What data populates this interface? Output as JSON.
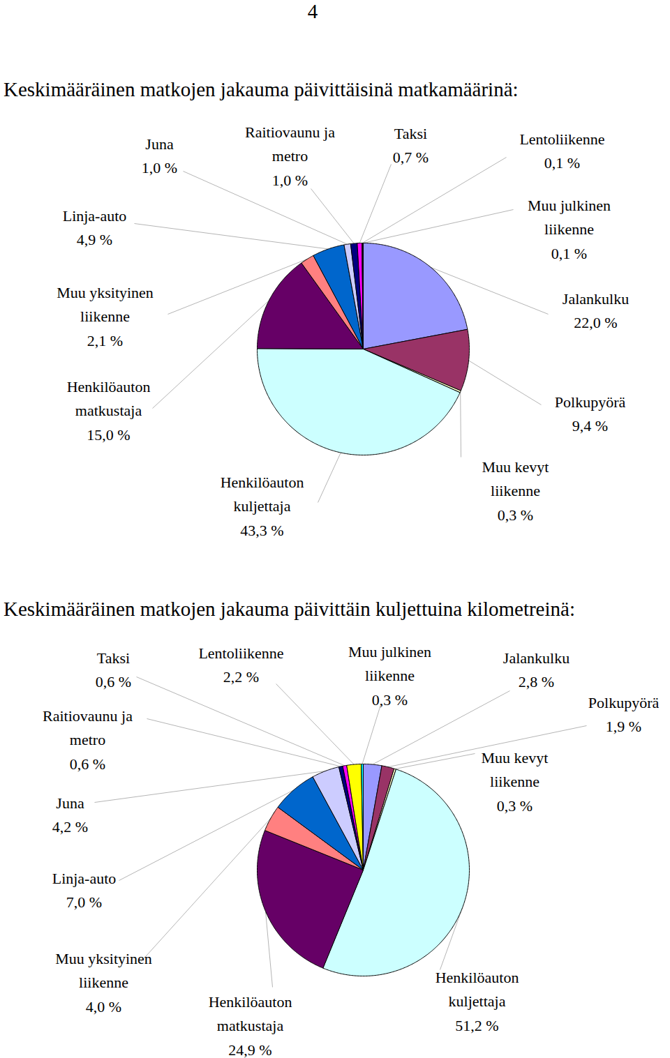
{
  "page_number": "4",
  "chart_data": [
    {
      "type": "pie",
      "title": "Keskimääräinen matkojen jakauma päivittäisinä matkamäärinä:",
      "categories": [
        "Jalankulku",
        "Polkupyörä",
        "Muu kevyt liikenne",
        "Henkilöauton kuljettaja",
        "Henkilöauton matkustaja",
        "Muu yksityinen liikenne",
        "Linja-auto",
        "Juna",
        "Raitiovaunu ja metro",
        "Taksi",
        "Lentoliikenne",
        "Muu julkinen liikenne"
      ],
      "values": [
        22.0,
        9.4,
        0.3,
        43.3,
        15.0,
        2.1,
        4.9,
        1.0,
        1.0,
        0.7,
        0.1,
        0.1
      ],
      "value_labels": [
        "22,0 %",
        "9,4 %",
        "0,3 %",
        "43,3 %",
        "15,0 %",
        "2,1 %",
        "4,9 %",
        "1,0 %",
        "1,0 %",
        "0,7 %",
        "0,1 %",
        "0,1 %"
      ],
      "colors": [
        "#9999ff",
        "#993366",
        "#ffffcc",
        "#ccffff",
        "#660066",
        "#ff8080",
        "#0066cc",
        "#ccccff",
        "#000080",
        "#ff00ff",
        "#ffff00",
        "#00ffff"
      ],
      "data_labels": true
    },
    {
      "type": "pie",
      "title": "Keskimääräinen matkojen jakauma päivittäin kuljettuina kilometreinä:",
      "categories": [
        "Jalankulku",
        "Polkupyörä",
        "Muu kevyt liikenne",
        "Henkilöauton kuljettaja",
        "Henkilöauton matkustaja",
        "Muu yksityinen liikenne",
        "Linja-auto",
        "Juna",
        "Raitiovaunu ja metro",
        "Taksi",
        "Lentoliikenne",
        "Muu julkinen liikenne"
      ],
      "values": [
        2.8,
        1.9,
        0.3,
        51.2,
        24.9,
        4.0,
        7.0,
        4.2,
        0.6,
        0.6,
        2.2,
        0.3
      ],
      "value_labels": [
        "2,8 %",
        "1,9 %",
        "0,3 %",
        "51,2 %",
        "24,9 %",
        "4,0 %",
        "7,0 %",
        "4,2 %",
        "0,6 %",
        "0,6 %",
        "2,2 %",
        "0,3 %"
      ],
      "colors": [
        "#9999ff",
        "#993366",
        "#ffffcc",
        "#ccffff",
        "#660066",
        "#ff8080",
        "#0066cc",
        "#ccccff",
        "#000080",
        "#ff00ff",
        "#ffff00",
        "#00ffff"
      ],
      "data_labels": true
    }
  ]
}
